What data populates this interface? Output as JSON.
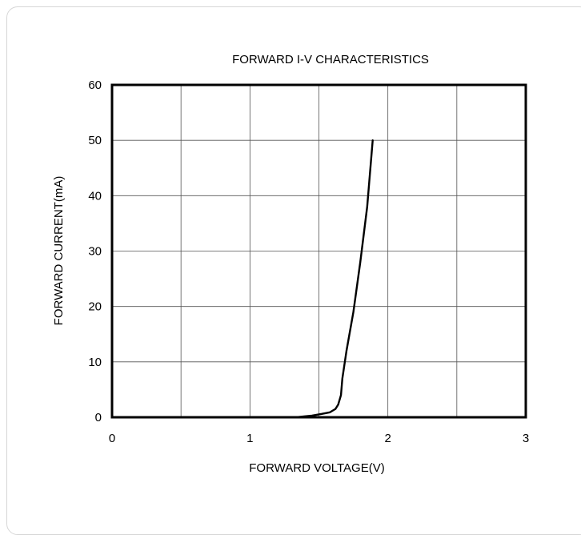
{
  "chart_data": {
    "type": "line",
    "title": "FORWARD I-V CHARACTERISTICS",
    "xlabel": "FORWARD VOLTAGE(V)",
    "ylabel": "FORWARD CURRENT(mA)",
    "xlim": [
      0,
      3
    ],
    "ylim": [
      0,
      60
    ],
    "xticks": [
      0,
      1,
      2,
      3
    ],
    "yticks": [
      0,
      10,
      20,
      30,
      40,
      50,
      60
    ],
    "grid": true,
    "series": [
      {
        "x": [
          0.0,
          1.35,
          1.45,
          1.52,
          1.58,
          1.62,
          1.64,
          1.66,
          1.67,
          1.7,
          1.75,
          1.8,
          1.85,
          1.89
        ],
        "y": [
          0,
          0.05,
          0.3,
          0.6,
          0.9,
          1.5,
          2.3,
          4.0,
          7.0,
          12.0,
          19.0,
          28.0,
          38.0,
          50.0
        ]
      }
    ]
  }
}
